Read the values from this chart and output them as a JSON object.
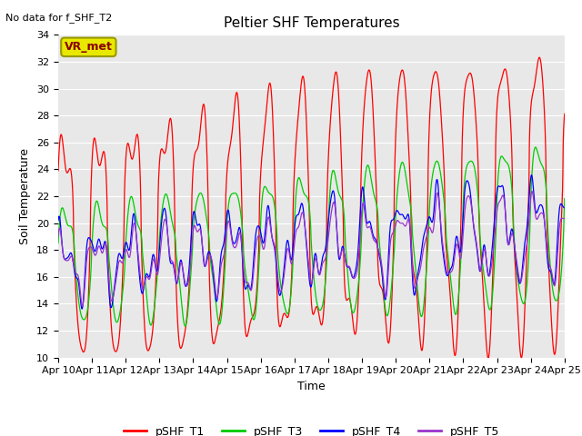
{
  "title": "Peltier SHF Temperatures",
  "title_note": "No data for f_SHF_T2",
  "xlabel": "Time",
  "ylabel": "Soil Temperature",
  "xlim": [
    0,
    15
  ],
  "ylim": [
    10,
    34
  ],
  "yticks": [
    10,
    12,
    14,
    16,
    18,
    20,
    22,
    24,
    26,
    28,
    30,
    32,
    34
  ],
  "xtick_labels": [
    "Apr 10",
    "Apr 11",
    "Apr 12",
    "Apr 13",
    "Apr 14",
    "Apr 15",
    "Apr 16",
    "Apr 17",
    "Apr 18",
    "Apr 19",
    "Apr 20",
    "Apr 21",
    "Apr 22",
    "Apr 23",
    "Apr 24",
    "Apr 25"
  ],
  "series": {
    "pSHF_T1": {
      "color": "#ff0000"
    },
    "pSHF_T3": {
      "color": "#00cc00"
    },
    "pSHF_T4": {
      "color": "#0000ff"
    },
    "pSHF_T5": {
      "color": "#9933cc"
    }
  },
  "vr_met_label": "VR_met",
  "vr_met_color": "#e8e800",
  "vr_met_text_color": "#880000",
  "fig_bg_color": "#ffffff",
  "plot_bg_color": "#e8e8e8",
  "grid_color": "#ffffff",
  "title_fontsize": 11,
  "label_fontsize": 9,
  "tick_fontsize": 8
}
